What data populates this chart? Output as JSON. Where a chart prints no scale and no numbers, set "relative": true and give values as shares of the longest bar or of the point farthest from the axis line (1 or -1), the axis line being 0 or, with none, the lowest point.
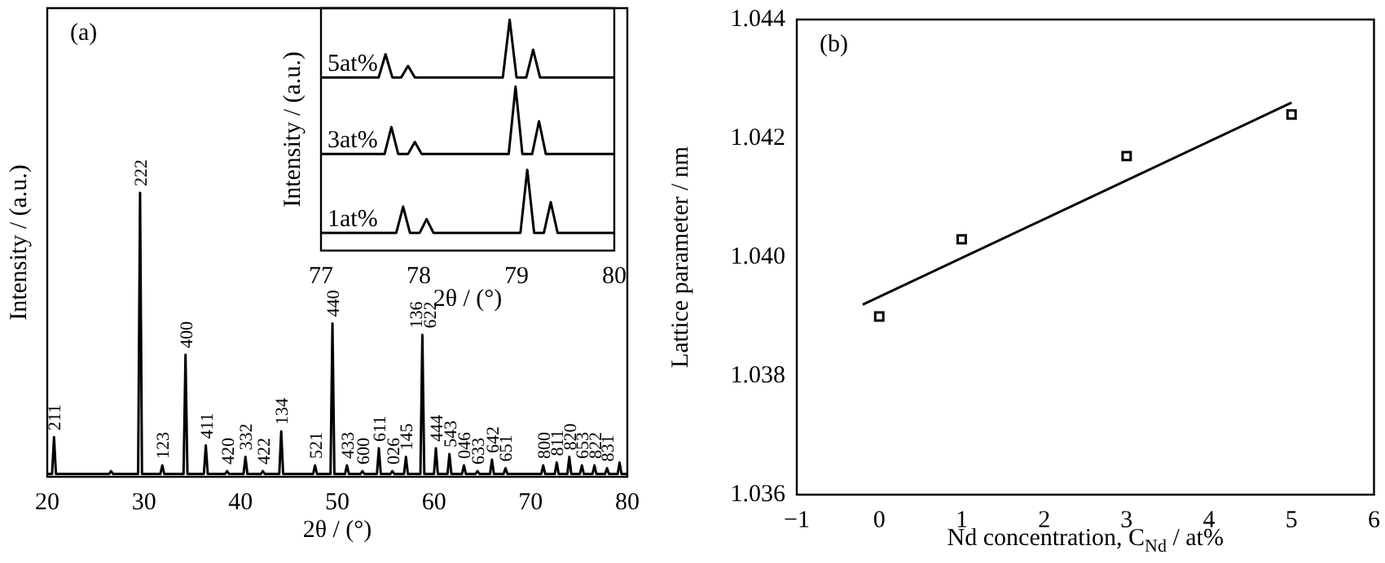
{
  "chart_data": [
    {
      "type": "line",
      "relative": true,
      "xlabel": "2θ / (°)",
      "ylabel": "Intensity / (a.u.)",
      "xlim": [
        20,
        80
      ],
      "xticks": [
        20,
        30,
        40,
        50,
        60,
        70,
        80
      ],
      "annotations": [
        "(a)",
        {
          "text": "211",
          "x": 20.7,
          "y": 0.14
        },
        {
          "text": "222",
          "x": 29.6,
          "y": 1.0
        },
        {
          "text": "123",
          "x": 31.9,
          "y": 0.04
        },
        {
          "text": "400",
          "x": 34.3,
          "y": 0.43
        },
        {
          "text": "411",
          "x": 36.4,
          "y": 0.11
        },
        {
          "text": "420",
          "x": 38.6,
          "y": 0.02
        },
        {
          "text": "332",
          "x": 40.5,
          "y": 0.07
        },
        {
          "text": "422",
          "x": 42.3,
          "y": 0.02
        },
        {
          "text": "134",
          "x": 44.2,
          "y": 0.16
        },
        {
          "text": "521",
          "x": 47.7,
          "y": 0.04
        },
        {
          "text": "440",
          "x": 49.5,
          "y": 0.54
        },
        {
          "text": "433",
          "x": 51.0,
          "y": 0.04
        },
        {
          "text": "600",
          "x": 52.6,
          "y": 0.02
        },
        {
          "text": "611",
          "x": 54.3,
          "y": 0.1
        },
        {
          "text": "026",
          "x": 55.7,
          "y": 0.02
        },
        {
          "text": "145",
          "x": 57.1,
          "y": 0.07
        },
        {
          "text": "136",
          "x": 58.8,
          "y": 0.5
        },
        {
          "text": "622",
          "x": 58.8,
          "y": 0.5
        },
        {
          "text": "444",
          "x": 60.2,
          "y": 0.1
        },
        {
          "text": "543",
          "x": 61.6,
          "y": 0.08
        },
        {
          "text": "046",
          "x": 63.1,
          "y": 0.04
        },
        {
          "text": "633",
          "x": 64.5,
          "y": 0.02
        },
        {
          "text": "642",
          "x": 66.0,
          "y": 0.06
        },
        {
          "text": "651",
          "x": 67.4,
          "y": 0.03
        },
        {
          "text": "800",
          "x": 71.3,
          "y": 0.04
        },
        {
          "text": "811",
          "x": 72.7,
          "y": 0.05
        },
        {
          "text": "820",
          "x": 74.0,
          "y": 0.07
        },
        {
          "text": "653",
          "x": 75.3,
          "y": 0.04
        },
        {
          "text": "822",
          "x": 76.6,
          "y": 0.04
        },
        {
          "text": "831",
          "x": 77.9,
          "y": 0.03
        }
      ],
      "series": [
        {
          "color": "#000000",
          "x": [
            20,
            20.5,
            20.7,
            20.9,
            26.4,
            26.6,
            26.8,
            29.4,
            29.6,
            29.8,
            31.7,
            31.9,
            32.1,
            34.1,
            34.3,
            34.5,
            36.2,
            36.4,
            36.6,
            38.4,
            38.6,
            38.8,
            40.3,
            40.5,
            40.7,
            42.1,
            42.3,
            42.5,
            44.0,
            44.2,
            44.4,
            47.5,
            47.7,
            47.9,
            49.3,
            49.5,
            49.7,
            50.8,
            51.0,
            51.2,
            52.4,
            52.6,
            52.8,
            54.1,
            54.3,
            54.5,
            55.5,
            55.7,
            55.9,
            56.9,
            57.1,
            57.3,
            58.6,
            58.8,
            59.0,
            60.0,
            60.2,
            60.4,
            61.4,
            61.6,
            61.8,
            62.9,
            63.1,
            63.3,
            64.3,
            64.5,
            64.7,
            65.8,
            66.0,
            66.2,
            67.2,
            67.4,
            67.6,
            71.1,
            71.3,
            71.5,
            72.5,
            72.7,
            72.9,
            73.8,
            74.0,
            74.2,
            75.1,
            75.3,
            75.5,
            76.4,
            76.6,
            76.8,
            77.7,
            77.9,
            78.1,
            79.0,
            79.2,
            79.4,
            80
          ],
          "values": [
            0.01,
            0.01,
            0.14,
            0.01,
            0.01,
            0.02,
            0.01,
            0.01,
            1.0,
            0.01,
            0.01,
            0.04,
            0.01,
            0.01,
            0.43,
            0.01,
            0.01,
            0.11,
            0.01,
            0.01,
            0.02,
            0.01,
            0.01,
            0.07,
            0.01,
            0.01,
            0.02,
            0.01,
            0.01,
            0.16,
            0.01,
            0.01,
            0.04,
            0.01,
            0.01,
            0.54,
            0.01,
            0.01,
            0.04,
            0.01,
            0.01,
            0.02,
            0.01,
            0.01,
            0.1,
            0.01,
            0.01,
            0.02,
            0.01,
            0.01,
            0.07,
            0.01,
            0.01,
            0.5,
            0.01,
            0.01,
            0.1,
            0.01,
            0.01,
            0.08,
            0.01,
            0.01,
            0.04,
            0.01,
            0.01,
            0.02,
            0.01,
            0.01,
            0.06,
            0.01,
            0.01,
            0.03,
            0.01,
            0.01,
            0.04,
            0.01,
            0.01,
            0.05,
            0.01,
            0.01,
            0.07,
            0.01,
            0.01,
            0.04,
            0.01,
            0.01,
            0.04,
            0.01,
            0.01,
            0.03,
            0.01,
            0.01,
            0.05,
            0.01,
            0.01
          ]
        }
      ]
    },
    {
      "type": "line",
      "relative": true,
      "xlabel": "2θ / (°)",
      "ylabel": "Intensity / (a.u.)",
      "xlim": [
        77,
        80
      ],
      "xticks": [
        77,
        78,
        79,
        80
      ],
      "series": [
        {
          "name": "5at%",
          "color": "#000000",
          "x": [
            77,
            77.59,
            77.66,
            77.73,
            77.82,
            77.89,
            77.96,
            78.86,
            78.93,
            79.0,
            79.1,
            79.17,
            79.24,
            80
          ],
          "values": [
            0.75,
            0.75,
            0.85,
            0.75,
            0.75,
            0.8,
            0.75,
            0.75,
            1.0,
            0.75,
            0.75,
            0.87,
            0.75,
            0.75
          ]
        },
        {
          "name": "3at%",
          "color": "#000000",
          "x": [
            77,
            77.65,
            77.72,
            77.79,
            77.89,
            77.96,
            78.03,
            78.92,
            78.99,
            79.06,
            79.16,
            79.23,
            79.3,
            80
          ],
          "values": [
            0.418,
            0.418,
            0.535,
            0.418,
            0.418,
            0.47,
            0.418,
            0.418,
            0.71,
            0.418,
            0.418,
            0.56,
            0.418,
            0.418
          ]
        },
        {
          "name": "1at%",
          "color": "#000000",
          "x": [
            77,
            77.77,
            77.84,
            77.91,
            78.01,
            78.08,
            78.15,
            79.04,
            79.11,
            79.18,
            79.28,
            79.35,
            79.42,
            80
          ],
          "values": [
            0.077,
            0.077,
            0.19,
            0.077,
            0.077,
            0.136,
            0.077,
            0.077,
            0.35,
            0.077,
            0.077,
            0.21,
            0.077,
            0.077
          ]
        }
      ]
    },
    {
      "type": "scatter",
      "xlabel": "Nd concentration, C$_{Nd}$ / at%",
      "ylabel": "Lattice parameter / nm",
      "xlim": [
        -1,
        6
      ],
      "xticks": [
        {
          "value": -1,
          "label": "−1"
        },
        0,
        1,
        2,
        3,
        4,
        5,
        6
      ],
      "ylim": [
        1.036,
        1.044
      ],
      "yticks": [
        {
          "value": 1.036,
          "label": "1.036"
        },
        {
          "value": 1.038,
          "label": "1.038"
        },
        {
          "value": 1.04,
          "label": "1.040"
        },
        {
          "value": 1.042,
          "label": "1.042"
        },
        {
          "value": 1.044,
          "label": "1.044"
        }
      ],
      "annotations": [
        "(b)"
      ],
      "series": [
        {
          "marker": "square",
          "color": "#000000",
          "x": [
            0,
            1,
            3,
            5
          ],
          "values": [
            1.039,
            1.0403,
            1.0417,
            1.0424
          ]
        },
        {
          "type": "line",
          "color": "#000000",
          "x": [
            -0.2,
            5.0
          ],
          "values": [
            1.0392,
            1.0426
          ]
        }
      ]
    }
  ]
}
